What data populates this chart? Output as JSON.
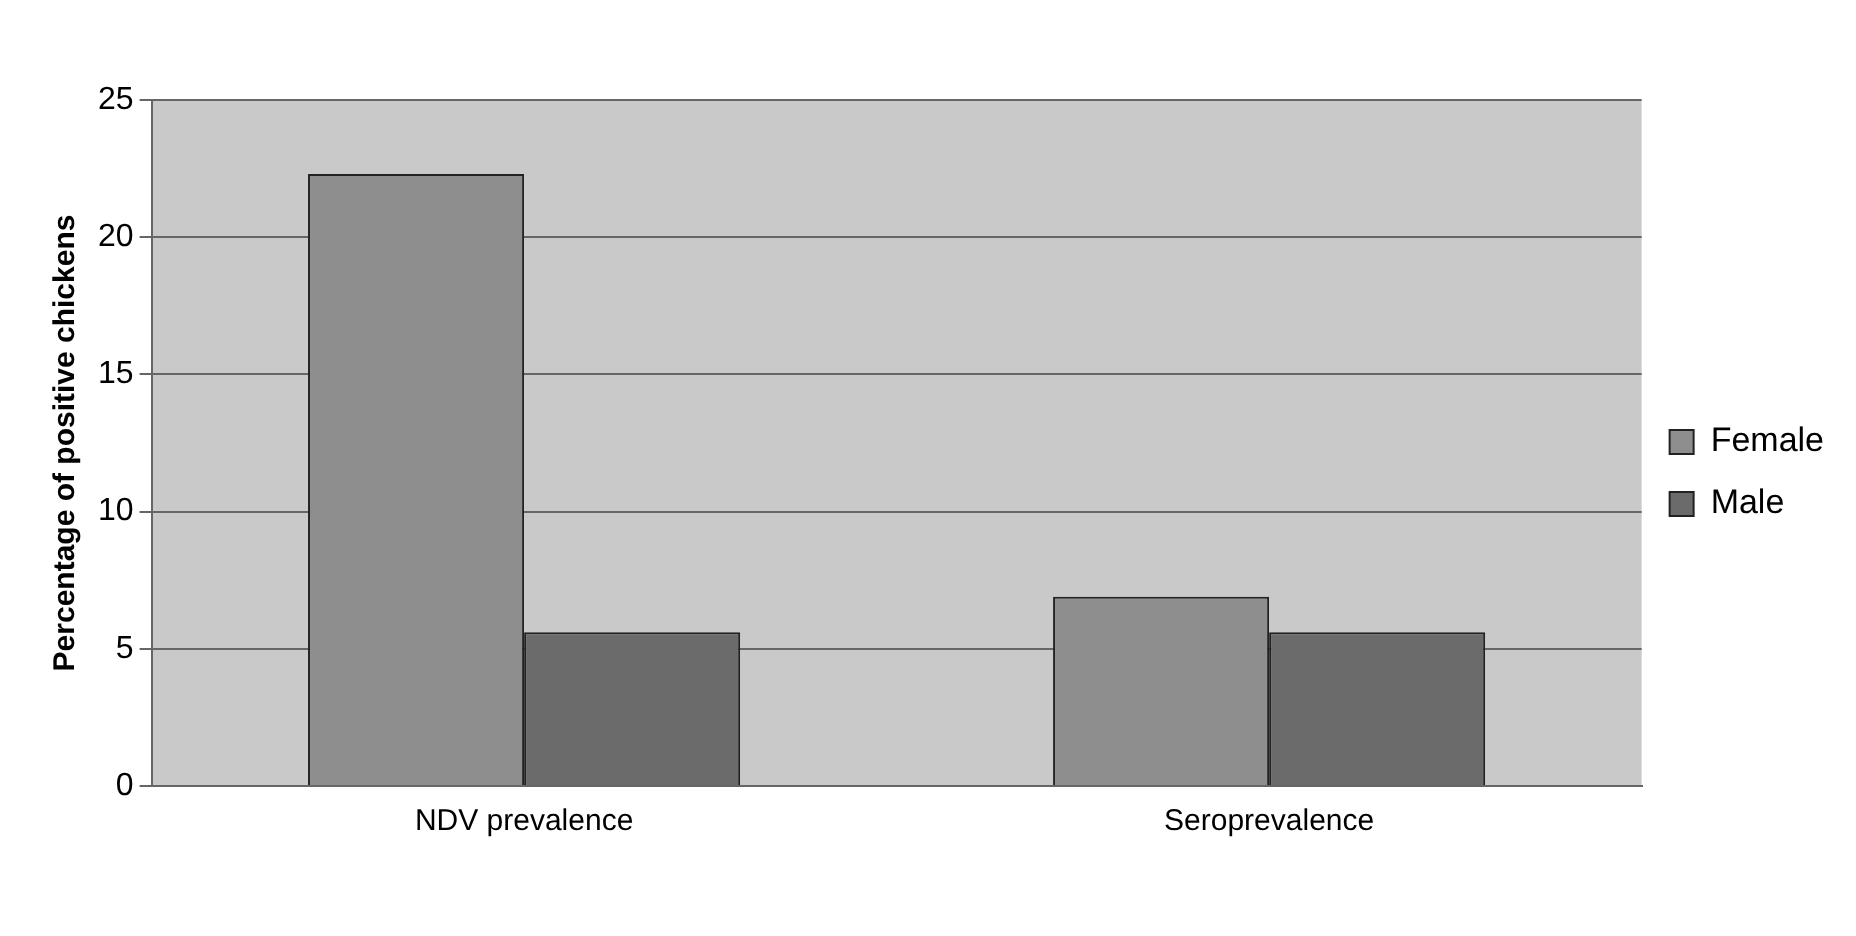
{
  "chart_data": {
    "type": "bar",
    "ylabel": "Percentage of positive chickens",
    "categories": [
      "NDV prevalence",
      "Seroprevalence"
    ],
    "series": [
      {
        "name": "Female",
        "color": "#8e8e8e",
        "values": [
          22.3,
          6.9
        ]
      },
      {
        "name": "Male",
        "color": "#6b6b6b",
        "values": [
          5.6,
          5.6
        ]
      }
    ],
    "ylim": [
      0,
      25
    ],
    "yticks": [
      0,
      5,
      10,
      15,
      20,
      25
    ],
    "grid": "y",
    "legend": "right"
  }
}
